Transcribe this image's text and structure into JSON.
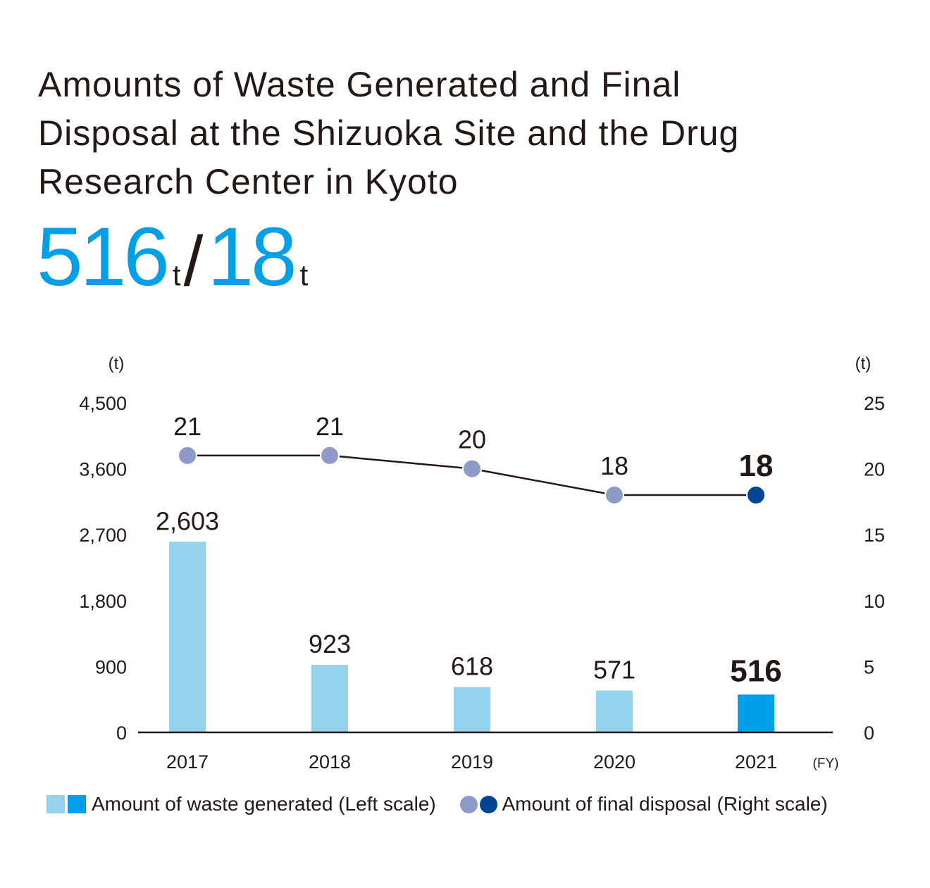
{
  "title_lines": [
    "Amounts of Waste Generated and Final",
    "Disposal at the Shizuoka Site and the Drug",
    "Research Center in Kyoto"
  ],
  "headline": {
    "waste_value": "516",
    "waste_unit": "t",
    "separator": "/",
    "disposal_value": "18",
    "disposal_unit": "t"
  },
  "legend": {
    "waste_label": "Amount of waste generated (Left scale)",
    "disposal_label": "Amount of final disposal (Right scale)"
  },
  "colors": {
    "bar_past": "#93d3ed",
    "bar_current": "#00a0e9",
    "dot_past": "#8d9bc8",
    "dot_current": "#004595",
    "text": "#231815",
    "accent": "#00a0e9"
  },
  "chart_data": {
    "type": "bar",
    "categories": [
      "2017",
      "2018",
      "2019",
      "2020",
      "2021"
    ],
    "xlabel": "(FY)",
    "left_axis": {
      "unit": "(t)",
      "ylim": [
        0,
        4500
      ],
      "ticks": [
        0,
        900,
        1800,
        2700,
        3600,
        4500
      ],
      "tick_labels": [
        "0",
        "900",
        "1,800",
        "2,700",
        "3,600",
        "4,500"
      ]
    },
    "right_axis": {
      "unit": "(t)",
      "ylim": [
        0,
        25
      ],
      "ticks": [
        0,
        5,
        10,
        15,
        20,
        25
      ],
      "tick_labels": [
        "0",
        "5",
        "10",
        "15",
        "20",
        "25"
      ]
    },
    "series": [
      {
        "name": "Amount of waste generated (Left scale)",
        "type": "bar",
        "axis": "left",
        "values": [
          2603,
          923,
          618,
          571,
          516
        ],
        "labels": [
          "2,603",
          "923",
          "618",
          "571",
          "516"
        ]
      },
      {
        "name": "Amount of final disposal (Right scale)",
        "type": "line",
        "axis": "right",
        "values": [
          21,
          21,
          20,
          18,
          18
        ],
        "labels": [
          "21",
          "21",
          "20",
          "18",
          "18"
        ]
      }
    ],
    "highlight_index": 4,
    "grid": false,
    "legend_position": "bottom"
  }
}
